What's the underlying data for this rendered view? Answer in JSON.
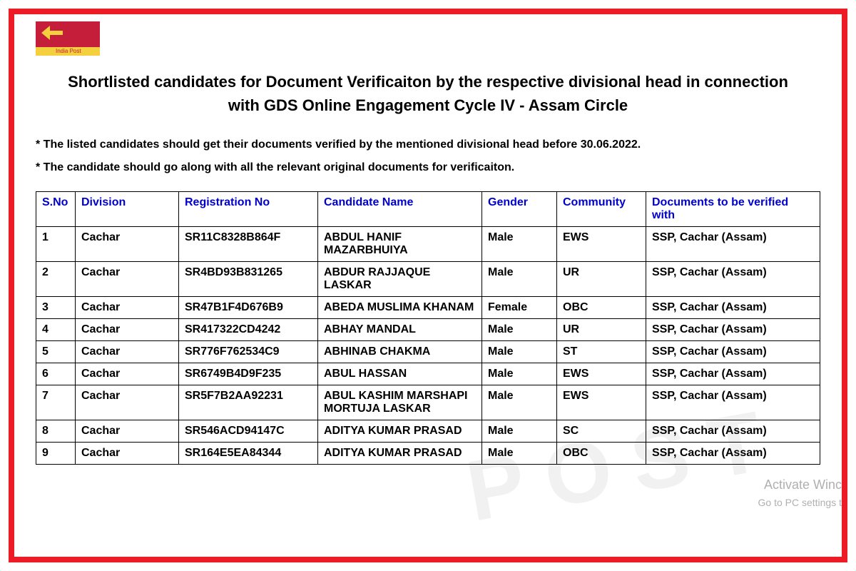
{
  "logo_label": "India Post",
  "title_line1": "Shortlisted candidates for Document Verificaiton by the respective divisional head in connection",
  "title_line2": "with GDS Online Engagement Cycle IV - Assam Circle",
  "note1": "* The listed candidates should get their documents verified by the mentioned divisional head before 30.06.2022.",
  "note2": "* The candidate should go along with all the relevant original documents for verificaiton.",
  "table": {
    "columns": [
      "S.No",
      "Division",
      "Registration No",
      "Candidate Name",
      "Gender",
      "Community",
      "Documents to be verified with"
    ],
    "rows": [
      [
        "1",
        "Cachar",
        "SR11C8328B864F",
        "ABDUL HANIF MAZARBHUIYA",
        "Male",
        "EWS",
        "SSP, Cachar (Assam)"
      ],
      [
        "2",
        "Cachar",
        "SR4BD93B831265",
        "ABDUR RAJJAQUE LASKAR",
        "Male",
        "UR",
        "SSP, Cachar (Assam)"
      ],
      [
        "3",
        "Cachar",
        "SR47B1F4D676B9",
        "ABEDA MUSLIMA KHANAM",
        "Female",
        "OBC",
        "SSP, Cachar (Assam)"
      ],
      [
        "4",
        "Cachar",
        "SR417322CD4242",
        "ABHAY MANDAL",
        "Male",
        "UR",
        "SSP, Cachar (Assam)"
      ],
      [
        "5",
        "Cachar",
        "SR776F762534C9",
        "ABHINAB CHAKMA",
        "Male",
        "ST",
        "SSP, Cachar (Assam)"
      ],
      [
        "6",
        "Cachar",
        "SR6749B4D9F235",
        "ABUL HASSAN",
        "Male",
        "EWS",
        "SSP, Cachar (Assam)"
      ],
      [
        "7",
        "Cachar",
        "SR5F7B2AA92231",
        "ABUL KASHIM MARSHAPI MORTUJA LASKAR",
        "Male",
        "EWS",
        "SSP, Cachar (Assam)"
      ],
      [
        "8",
        "Cachar",
        "SR546ACD94147C",
        "ADITYA KUMAR PRASAD",
        "Male",
        "SC",
        "SSP, Cachar (Assam)"
      ],
      [
        "9",
        "Cachar",
        "SR164E5EA84344",
        "ADITYA KUMAR PRASAD",
        "Male",
        "OBC",
        "SSP, Cachar (Assam)"
      ]
    ]
  },
  "watermark_text": "POST",
  "win_text1": "Activate Winc",
  "win_text2": "Go to PC settings t",
  "colors": {
    "frame_border": "#ed1c24",
    "header_text": "#0000cc",
    "body_text": "#000000",
    "watermark": "#999999",
    "logo_red": "#c41e3a",
    "logo_yellow": "#f4d03f"
  }
}
